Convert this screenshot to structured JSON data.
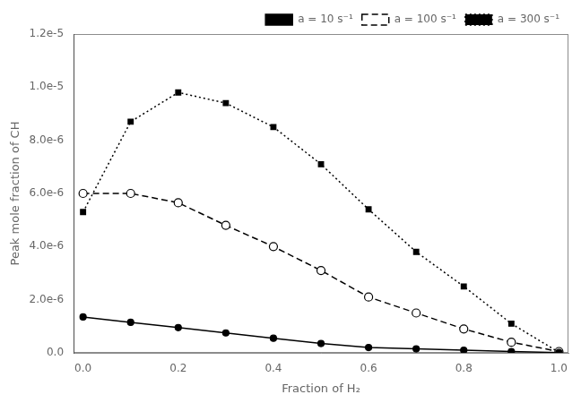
{
  "chart_data": {
    "type": "line",
    "x_label": "Fraction of H₂",
    "y_label": "Peak mole fraction of CH",
    "x": [
      0.0,
      0.1,
      0.2,
      0.3,
      0.4,
      0.5,
      0.6,
      0.7,
      0.8,
      0.9,
      1.0
    ],
    "series": [
      {
        "name": "a = 10 s⁻¹",
        "color": "#000000",
        "line_style": "solid",
        "marker": "circle",
        "values": [
          1.35e-06,
          1.15e-06,
          9.5e-07,
          7.5e-07,
          5.5e-07,
          3.5e-07,
          2e-07,
          1.5e-07,
          1e-07,
          5e-08,
          1e-08
        ]
      },
      {
        "name": "a = 100 s⁻¹",
        "color": "#000000",
        "line_style": "dashed",
        "marker": "open_circle",
        "values": [
          6e-06,
          6e-06,
          5.65e-06,
          4.8e-06,
          4e-06,
          3.1e-06,
          2.1e-06,
          1.5e-06,
          9e-07,
          4e-07,
          5e-08
        ]
      },
      {
        "name": "a = 300 s⁻¹",
        "color": "#000000",
        "line_style": "dotted",
        "marker": "square",
        "values": [
          5.3e-06,
          8.7e-06,
          9.8e-06,
          9.4e-06,
          8.5e-06,
          7.1e-06,
          5.4e-06,
          3.8e-06,
          2.5e-06,
          1.1e-06,
          2e-08
        ]
      }
    ],
    "xlim": [
      -0.02,
      1.02
    ],
    "xticks": [
      {
        "value": 0.0,
        "label": "0.0"
      },
      0.2,
      0.4,
      0.6,
      0.8,
      {
        "value": 1.0,
        "label": "1.0"
      }
    ],
    "ylim": [
      0,
      1.2e-05
    ],
    "yticks": [
      {
        "value": 0,
        "label": "0.0"
      },
      {
        "value": 2e-06,
        "label": "2.0e-6"
      },
      {
        "value": 4e-06,
        "label": "4.0e-6"
      },
      {
        "value": 6e-06,
        "label": "6.0e-6"
      },
      {
        "value": 8e-06,
        "label": "8.0e-6"
      },
      {
        "value": 1e-05,
        "label": "1.0e-5"
      },
      {
        "value": 1.2e-05,
        "label": "1.2e-5"
      }
    ],
    "grid": false,
    "legend": "upper right"
  }
}
